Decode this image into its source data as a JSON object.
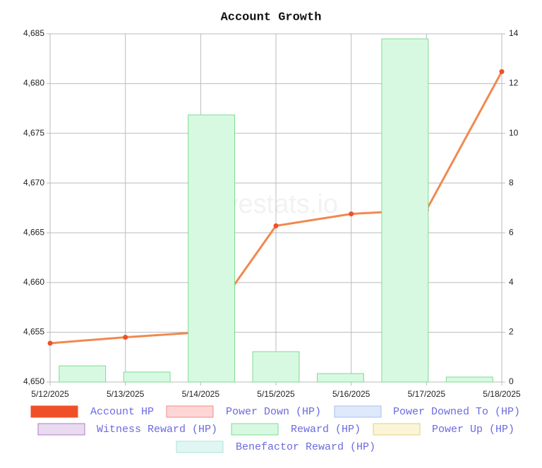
{
  "chart_data": {
    "type": "bar-line",
    "title": "Account Growth",
    "watermark": "hivestats.io",
    "categories": [
      "5/12/2025",
      "5/13/2025",
      "5/14/2025",
      "5/15/2025",
      "5/16/2025",
      "5/17/2025",
      "5/18/2025"
    ],
    "ylim": [
      4650,
      4685
    ],
    "yticks": [
      {
        "value": 4650,
        "label": "4,650"
      },
      {
        "value": 4655,
        "label": "4,655"
      },
      {
        "value": 4660,
        "label": "4,660"
      },
      {
        "value": 4665,
        "label": "4,665"
      },
      {
        "value": 4670,
        "label": "4,670"
      },
      {
        "value": 4675,
        "label": "4,675"
      },
      {
        "value": 4680,
        "label": "4,680"
      },
      {
        "value": 4685,
        "label": "4,685"
      }
    ],
    "y2lim": [
      0,
      14
    ],
    "y2ticks": [
      0,
      2,
      4,
      6,
      8,
      10,
      12,
      14
    ],
    "grid": true,
    "legend": "bottom",
    "series": [
      {
        "name": "Account HP",
        "type": "line",
        "axis": "y",
        "color": "#f0894f",
        "marker_color": "#f05028",
        "values": [
          4653.9,
          4654.5,
          4655.0,
          4665.7,
          4666.9,
          4667.3,
          4681.2
        ]
      },
      {
        "name": "Power Down (HP)",
        "color": "#ffd6d6",
        "border": "#f08a8a"
      },
      {
        "name": "Power Downed To (HP)",
        "color": "#dde8fb",
        "border": "#a9c1f0"
      },
      {
        "name": "Witness Reward (HP)",
        "color": "#e8dbef",
        "border": "#b07ac0"
      },
      {
        "name": "Reward (HP)",
        "type": "bar",
        "axis": "y2",
        "color": "#d7f9e2",
        "border": "#7edc8f",
        "values": [
          0.65,
          0.4,
          10.74,
          1.22,
          0.34,
          13.8,
          0.2
        ]
      },
      {
        "name": "Power Up (HP)",
        "color": "#fbf5d8",
        "border": "#e0cf80"
      },
      {
        "name": "Benefactor Reward (HP)",
        "color": "#e0f6f3",
        "border": "#a9e5dd"
      }
    ]
  }
}
